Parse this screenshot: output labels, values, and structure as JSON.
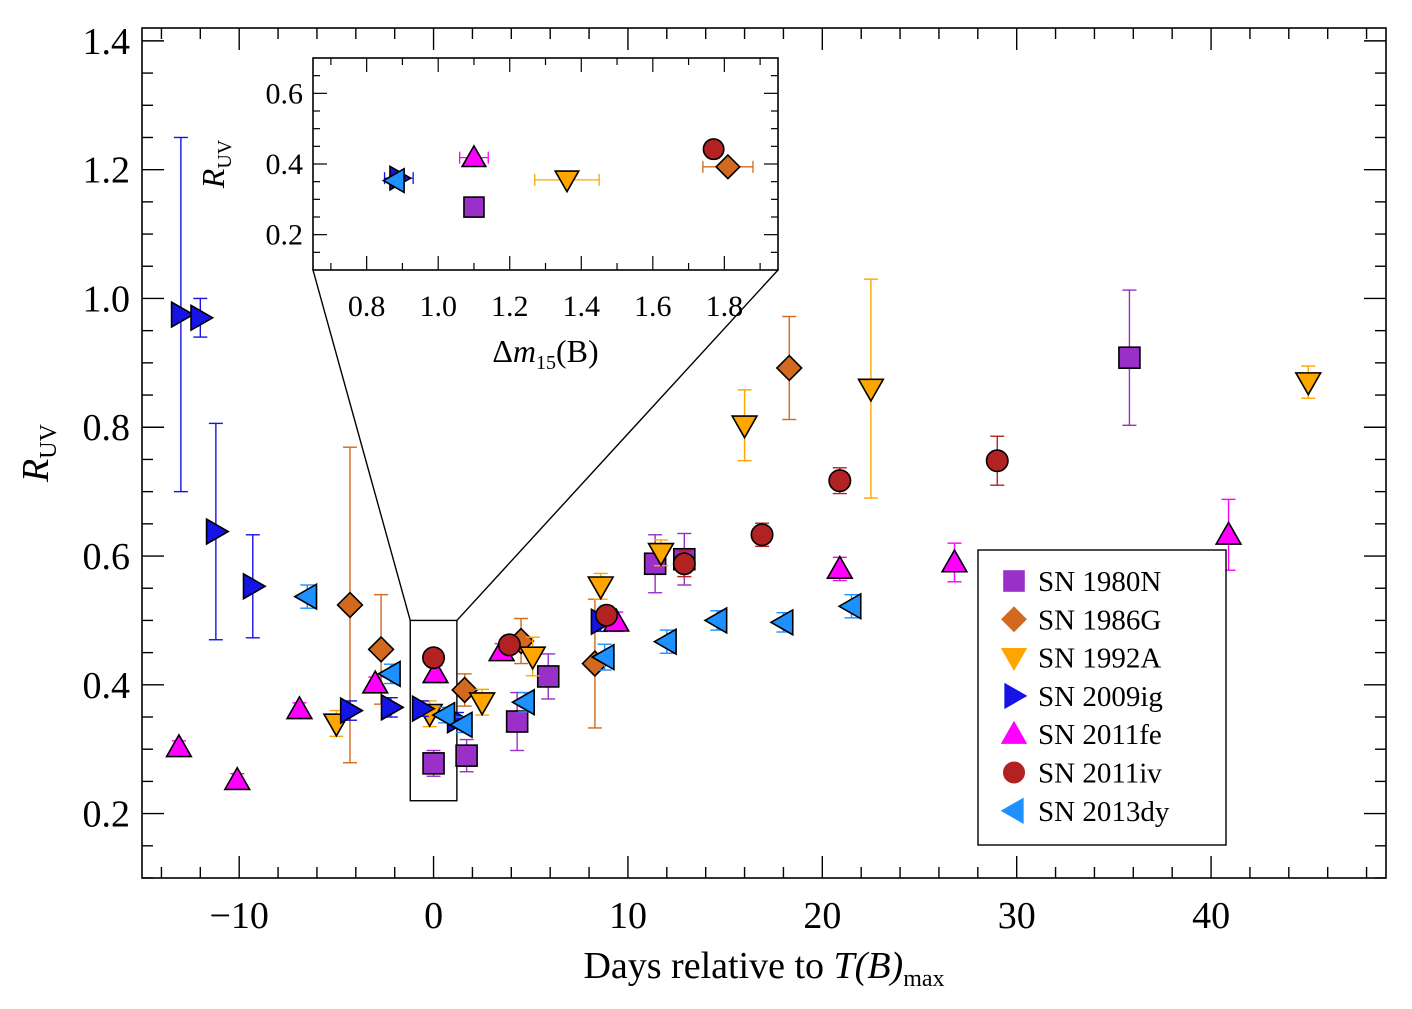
{
  "chart_data": {
    "type": "scatter",
    "xlabel": "Days relative to T(B)max",
    "xlabel_parts": {
      "main": "Days relative to ",
      "italic": "T(B)",
      "sub": "max"
    },
    "ylabel": "R_UV",
    "ylabel_parts": {
      "main": "R",
      "sub": "UV"
    },
    "xlim": [
      -15,
      49
    ],
    "ylim": [
      0.1,
      1.42
    ],
    "x_ticks": [
      -10,
      0,
      10,
      20,
      30,
      40
    ],
    "x_tick_labels": [
      "−10",
      "0",
      "10",
      "20",
      "30",
      "40"
    ],
    "y_ticks": [
      0.2,
      0.4,
      0.6,
      0.8,
      1.0,
      1.2,
      1.4
    ],
    "y_tick_labels": [
      "0.2",
      "0.4",
      "0.6",
      "0.8",
      "1.0",
      "1.2",
      "1.4"
    ],
    "legend_position": "lower-right",
    "highlight_box": {
      "x": [
        -1.2,
        1.2
      ],
      "y": [
        0.22,
        0.5
      ]
    },
    "series": [
      {
        "name": "SN 1980N",
        "marker": "square",
        "color": "#9b30c8",
        "points": [
          {
            "x": 0.0,
            "y": 0.278,
            "err": 0.02
          },
          {
            "x": 1.7,
            "y": 0.29,
            "err": 0.025
          },
          {
            "x": 4.3,
            "y": 0.343,
            "err": 0.045
          },
          {
            "x": 5.9,
            "y": 0.413,
            "err": 0.035
          },
          {
            "x": 11.4,
            "y": 0.588,
            "err": 0.045
          },
          {
            "x": 12.9,
            "y": 0.595,
            "err": 0.04
          },
          {
            "x": 35.8,
            "y": 0.908,
            "err": 0.105
          }
        ]
      },
      {
        "name": "SN 1986G",
        "marker": "diamond",
        "color": "#d2691e",
        "points": [
          {
            "x": -4.3,
            "y": 0.524,
            "err": 0.245
          },
          {
            "x": -2.7,
            "y": 0.455,
            "err": 0.085
          },
          {
            "x": 1.6,
            "y": 0.392,
            "err": 0.025
          },
          {
            "x": 4.5,
            "y": 0.468,
            "err": 0.035
          },
          {
            "x": 8.3,
            "y": 0.433,
            "err": 0.1
          },
          {
            "x": 18.3,
            "y": 0.892,
            "err": 0.08
          }
        ]
      },
      {
        "name": "SN 1992A",
        "marker": "triangle-down",
        "color": "#ffa500",
        "points": [
          {
            "x": -5.0,
            "y": 0.34,
            "err": 0.02
          },
          {
            "x": -0.2,
            "y": 0.355,
            "err": 0.02
          },
          {
            "x": 2.5,
            "y": 0.373,
            "err": 0.02
          },
          {
            "x": 5.1,
            "y": 0.444,
            "err": 0.03
          },
          {
            "x": 8.6,
            "y": 0.553,
            "err": 0.02
          },
          {
            "x": 11.7,
            "y": 0.605,
            "err": 0.02
          },
          {
            "x": 16.0,
            "y": 0.803,
            "err": 0.055
          },
          {
            "x": 22.5,
            "y": 0.86,
            "err": 0.17
          },
          {
            "x": 45.0,
            "y": 0.87,
            "err": 0.025
          }
        ]
      },
      {
        "name": "SN 2009ig",
        "marker": "triangle-right",
        "color": "#1414e6",
        "points": [
          {
            "x": -13.0,
            "y": 0.975,
            "err": 0.275
          },
          {
            "x": -12.0,
            "y": 0.97,
            "err": 0.03
          },
          {
            "x": -11.2,
            "y": 0.638,
            "err": 0.168
          },
          {
            "x": -9.3,
            "y": 0.553,
            "err": 0.08
          },
          {
            "x": -4.3,
            "y": 0.36,
            "err": 0.015
          },
          {
            "x": -2.2,
            "y": 0.365,
            "err": 0.015
          },
          {
            "x": -0.6,
            "y": 0.363,
            "err": 0.012
          },
          {
            "x": 1.2,
            "y": 0.345,
            "err": 0.012
          },
          {
            "x": 8.6,
            "y": 0.498,
            "err": 0.015
          }
        ]
      },
      {
        "name": "SN 2011fe",
        "marker": "triangle-up",
        "color": "#ff00ff",
        "points": [
          {
            "x": -13.1,
            "y": 0.303,
            "err": 0.01
          },
          {
            "x": -10.1,
            "y": 0.252,
            "err": 0.01
          },
          {
            "x": -6.9,
            "y": 0.362,
            "err": 0.01
          },
          {
            "x": -3.0,
            "y": 0.402,
            "err": 0.01
          },
          {
            "x": 0.1,
            "y": 0.418,
            "err": 0.012
          },
          {
            "x": 3.5,
            "y": 0.452,
            "err": 0.012
          },
          {
            "x": 9.4,
            "y": 0.498,
            "err": 0.015
          },
          {
            "x": 20.9,
            "y": 0.58,
            "err": 0.018
          },
          {
            "x": 26.8,
            "y": 0.59,
            "err": 0.03
          },
          {
            "x": 40.9,
            "y": 0.633,
            "err": 0.055
          }
        ]
      },
      {
        "name": "SN 2011iv",
        "marker": "circle",
        "color": "#b22222",
        "points": [
          {
            "x": 0.0,
            "y": 0.442,
            "err": 0.012
          },
          {
            "x": 3.9,
            "y": 0.462,
            "err": 0.012
          },
          {
            "x": 8.9,
            "y": 0.508,
            "err": 0.014
          },
          {
            "x": 12.9,
            "y": 0.588,
            "err": 0.02
          },
          {
            "x": 16.9,
            "y": 0.633,
            "err": 0.018
          },
          {
            "x": 20.9,
            "y": 0.717,
            "err": 0.02
          },
          {
            "x": 29.0,
            "y": 0.748,
            "err": 0.038
          }
        ]
      },
      {
        "name": "SN 2013dy",
        "marker": "triangle-left",
        "color": "#1e90ff",
        "points": [
          {
            "x": -6.5,
            "y": 0.537,
            "err": 0.018
          },
          {
            "x": -2.2,
            "y": 0.417,
            "err": 0.015
          },
          {
            "x": 0.6,
            "y": 0.353,
            "err": 0.012
          },
          {
            "x": 1.5,
            "y": 0.338,
            "err": 0.012
          },
          {
            "x": 4.7,
            "y": 0.373,
            "err": 0.015
          },
          {
            "x": 8.8,
            "y": 0.443,
            "err": 0.02
          },
          {
            "x": 12.0,
            "y": 0.467,
            "err": 0.018
          },
          {
            "x": 14.6,
            "y": 0.5,
            "err": 0.015
          },
          {
            "x": 18.0,
            "y": 0.497,
            "err": 0.015
          },
          {
            "x": 21.5,
            "y": 0.522,
            "err": 0.018
          }
        ]
      }
    ],
    "inset": {
      "type": "scatter",
      "xlabel": "Δm15(B)",
      "xlabel_parts": {
        "main": "Δ",
        "italic": "m",
        "sub": "15",
        "tail": "(B)"
      },
      "ylabel": "R_UV",
      "ylabel_parts": {
        "main": "R",
        "sub": "UV"
      },
      "xlim": [
        0.65,
        1.95
      ],
      "ylim": [
        0.1,
        0.7
      ],
      "x_ticks": [
        0.8,
        1.0,
        1.2,
        1.4,
        1.6,
        1.8
      ],
      "x_tick_labels": [
        "0.8",
        "1.0",
        "1.2",
        "1.4",
        "1.6",
        "1.8"
      ],
      "y_ticks": [
        0.2,
        0.4,
        0.6
      ],
      "y_tick_labels": [
        "0.2",
        "0.4",
        "0.6"
      ],
      "points": [
        {
          "series": "SN 1980N",
          "x": 1.1,
          "y": 0.278,
          "xerr": 0.0
        },
        {
          "series": "SN 1986G",
          "x": 1.81,
          "y": 0.392,
          "xerr": 0.07
        },
        {
          "series": "SN 1992A",
          "x": 1.36,
          "y": 0.355,
          "xerr": 0.09
        },
        {
          "series": "SN 2009ig",
          "x": 0.89,
          "y": 0.36,
          "xerr": 0.04
        },
        {
          "series": "SN 2011fe",
          "x": 1.1,
          "y": 0.418,
          "xerr": 0.04
        },
        {
          "series": "SN 2011iv",
          "x": 1.77,
          "y": 0.442,
          "xerr": 0.0
        },
        {
          "series": "SN 2013dy",
          "x": 0.88,
          "y": 0.353,
          "xerr": 0.0
        }
      ]
    }
  }
}
